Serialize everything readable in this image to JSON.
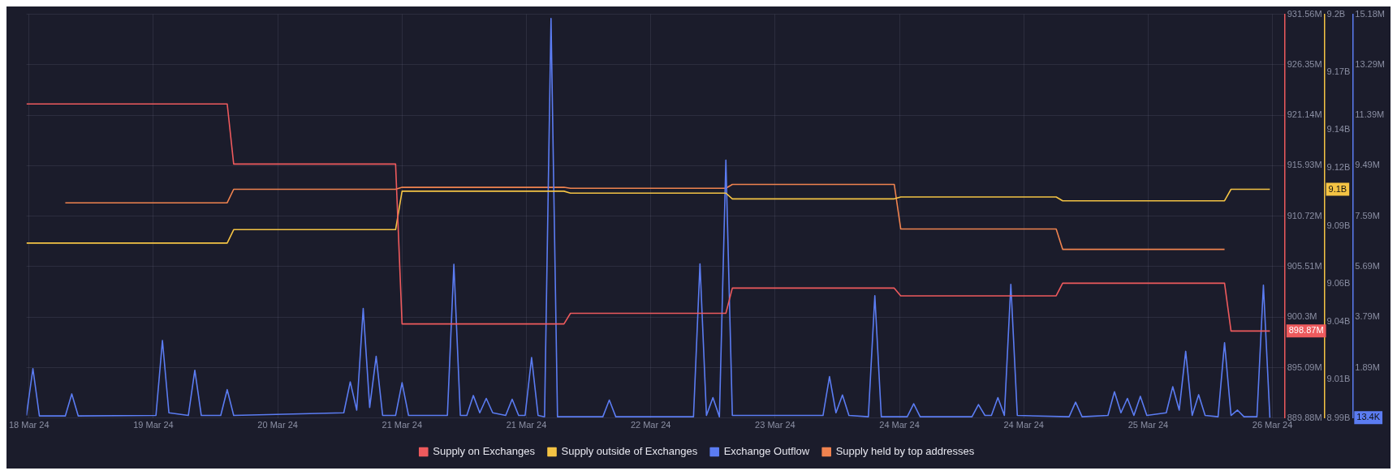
{
  "chart_data": {
    "type": "line",
    "xlim": [
      "--03-18T14:00",
      "--03-26T16:18"
    ],
    "xticks": [
      {
        "value": "--03-18T14:24",
        "label": "18 Mar 24"
      },
      {
        "value": "--03-19T09:36",
        "label": "19 Mar 24"
      },
      {
        "value": "--03-20T04:48",
        "label": "20 Mar 24"
      },
      {
        "value": "--03-21T00:00",
        "label": "21 Mar 24"
      },
      {
        "value": "--03-21T19:12",
        "label": "21 Mar 24"
      },
      {
        "value": "--03-22T14:24",
        "label": "22 Mar 24"
      },
      {
        "value": "--03-23T09:36",
        "label": "23 Mar 24"
      },
      {
        "value": "--03-24T04:48",
        "label": "24 Mar 24"
      },
      {
        "value": "--03-25T00:00",
        "label": "24 Mar 24"
      },
      {
        "value": "--03-25T19:12",
        "label": "25 Mar 24"
      },
      {
        "value": "--03-26T14:24",
        "label": "26 Mar 24"
      }
    ],
    "ylim": [
      889.88,
      931.56
    ],
    "yticks": [
      {
        "value": 889.88,
        "label": "889.88M"
      },
      {
        "value": 895.09,
        "label": "895.09M"
      },
      {
        "value": 900.3,
        "label": "900.3M"
      },
      {
        "value": 905.51,
        "label": "905.51M"
      },
      {
        "value": 910.72,
        "label": "910.72M"
      },
      {
        "value": 915.93,
        "label": "915.93M"
      },
      {
        "value": 921.14,
        "label": "921.14M"
      },
      {
        "value": 926.35,
        "label": "926.35M"
      },
      {
        "value": 931.56,
        "label": "931.56M"
      }
    ],
    "y2lim": [
      8.99,
      9.2
    ],
    "y2ticks": [
      {
        "value": 8.99,
        "label": "8.99B"
      },
      {
        "value": 9.01,
        "label": "9.01B"
      },
      {
        "value": 9.04,
        "label": "9.04B"
      },
      {
        "value": 9.06,
        "label": "9.06B"
      },
      {
        "value": 9.09,
        "label": "9.09B"
      },
      {
        "value": 9.12,
        "label": "9.12B"
      },
      {
        "value": 9.14,
        "label": "9.14B"
      },
      {
        "value": 9.17,
        "label": "9.17B"
      },
      {
        "value": 9.2,
        "label": "9.2B"
      }
    ],
    "y3lim": [
      0,
      15.18
    ],
    "y3ticks": [
      {
        "value": 0,
        "label": null
      },
      {
        "value": 1.89,
        "label": "1.89M"
      },
      {
        "value": 3.79,
        "label": "3.79M"
      },
      {
        "value": 5.69,
        "label": "5.69M"
      },
      {
        "value": 7.59,
        "label": "7.59M"
      },
      {
        "value": 9.49,
        "label": "9.49M"
      },
      {
        "value": 11.39,
        "label": "11.39M"
      },
      {
        "value": 13.29,
        "label": "13.29M"
      },
      {
        "value": 15.18,
        "label": "15.18M"
      }
    ],
    "grid": true,
    "legend": "bottom",
    "annotations": [
      "898.87M",
      "9.1B",
      "13.4K"
    ],
    "series": [
      {
        "name": "Supply on Exchanges",
        "color": "#ee5a5d",
        "axis": "y",
        "x": [
          "--03-18T14:00",
          "--03-19T21:00",
          "--03-19T22:00",
          "--03-20T23:00",
          "--03-21T00:00",
          "--03-22T01:00",
          "--03-22T02:00",
          "--03-23T02:00",
          "--03-23T03:00",
          "--03-24T04:00",
          "--03-24T05:00",
          "--03-25T05:00",
          "--03-25T06:00",
          "--03-26T07:00",
          "--03-26T08:00",
          "--03-26T14:00"
        ],
        "values": [
          922.3,
          922.3,
          916.1,
          916.1,
          899.6,
          899.6,
          900.7,
          900.7,
          903.3,
          903.3,
          902.5,
          902.5,
          903.8,
          903.8,
          898.87,
          898.87
        ]
      },
      {
        "name": "Supply outside of Exchanges",
        "color": "#f4c344",
        "axis": "y2",
        "x": [
          "--03-18T14:00",
          "--03-19T21:00",
          "--03-19T22:00",
          "--03-20T23:00",
          "--03-21T00:00",
          "--03-22T01:00",
          "--03-22T02:00",
          "--03-23T02:00",
          "--03-23T03:00",
          "--03-24T04:00",
          "--03-24T05:00",
          "--03-25T05:00",
          "--03-25T06:00",
          "--03-26T07:00",
          "--03-26T08:00",
          "--03-26T14:00"
        ],
        "values": [
          9.081,
          9.081,
          9.088,
          9.088,
          9.108,
          9.108,
          9.107,
          9.107,
          9.104,
          9.104,
          9.105,
          9.105,
          9.103,
          9.103,
          9.109,
          9.109
        ]
      },
      {
        "name": "Exchange Outflow",
        "color": "#5b7cf2",
        "axis": "y3",
        "x": [
          "--03-18T14:00",
          "--03-18T15:00",
          "--03-18T16:00",
          "--03-18T20:00",
          "--03-18T21:00",
          "--03-18T22:00",
          "--03-19T10:00",
          "--03-19T11:00",
          "--03-19T12:00",
          "--03-19T15:00",
          "--03-19T16:00",
          "--03-19T17:00",
          "--03-19T20:00",
          "--03-19T21:00",
          "--03-19T22:00",
          "--03-20T15:00",
          "--03-20T16:00",
          "--03-20T17:00",
          "--03-20T18:00",
          "--03-20T19:00",
          "--03-20T20:00",
          "--03-20T21:00",
          "--03-20T23:00",
          "--03-21T00:00",
          "--03-21T01:00",
          "--03-21T07:00",
          "--03-21T08:00",
          "--03-21T09:00",
          "--03-21T10:00",
          "--03-21T11:00",
          "--03-21T12:00",
          "--03-21T13:00",
          "--03-21T14:00",
          "--03-21T16:00",
          "--03-21T17:00",
          "--03-21T18:00",
          "--03-21T19:00",
          "--03-21T20:00",
          "--03-21T21:00",
          "--03-21T22:00",
          "--03-21T23:00",
          "--03-22T00:00",
          "--03-22T07:00",
          "--03-22T08:00",
          "--03-22T09:00",
          "--03-22T21:00",
          "--03-22T22:00",
          "--03-22T23:00",
          "--03-23T00:00",
          "--03-23T01:00",
          "--03-23T02:00",
          "--03-23T03:00",
          "--03-23T17:00",
          "--03-23T18:00",
          "--03-23T19:00",
          "--03-23T20:00",
          "--03-23T21:00",
          "--03-24T00:00",
          "--03-24T01:00",
          "--03-24T02:00",
          "--03-24T06:00",
          "--03-24T07:00",
          "--03-24T08:00",
          "--03-24T16:00",
          "--03-24T17:00",
          "--03-24T18:00",
          "--03-24T19:00",
          "--03-24T20:00",
          "--03-24T21:00",
          "--03-24T22:00",
          "--03-24T23:00",
          "--03-25T07:00",
          "--03-25T08:00",
          "--03-25T09:00",
          "--03-25T13:00",
          "--03-25T14:00",
          "--03-25T15:00",
          "--03-25T16:00",
          "--03-25T17:00",
          "--03-25T18:00",
          "--03-25T19:00",
          "--03-25T22:00",
          "--03-25T23:00",
          "--03-26T00:00",
          "--03-26T01:00",
          "--03-26T02:00",
          "--03-26T03:00",
          "--03-26T04:00",
          "--03-26T06:00",
          "--03-26T07:00",
          "--03-26T08:00",
          "--03-26T09:00",
          "--03-26T10:00",
          "--03-26T12:00",
          "--03-26T13:00",
          "--03-26T14:00"
        ],
        "values": [
          0.1,
          1.86,
          0.08,
          0.08,
          0.91,
          0.08,
          0.1,
          2.92,
          0.2,
          0.1,
          1.8,
          0.1,
          0.1,
          1.07,
          0.1,
          0.2,
          1.36,
          0.3,
          4.12,
          0.4,
          2.32,
          0.1,
          0.1,
          1.33,
          0.1,
          0.1,
          5.78,
          0.1,
          0.1,
          0.85,
          0.2,
          0.74,
          0.2,
          0.1,
          0.71,
          0.1,
          0.1,
          2.28,
          0.1,
          0.05,
          15.02,
          0.05,
          0.05,
          0.68,
          0.05,
          0.05,
          5.8,
          0.1,
          0.77,
          0.05,
          9.7,
          0.1,
          0.1,
          1.56,
          0.2,
          0.87,
          0.1,
          0.05,
          4.6,
          0.05,
          0.05,
          0.54,
          0.05,
          0.05,
          0.51,
          0.1,
          0.1,
          0.77,
          0.1,
          5.03,
          0.1,
          0.05,
          0.6,
          0.05,
          0.1,
          0.99,
          0.2,
          0.74,
          0.1,
          0.82,
          0.1,
          0.2,
          1.18,
          0.3,
          2.51,
          0.1,
          0.88,
          0.1,
          0.05,
          2.83,
          0.1,
          0.3,
          0.05,
          0.05,
          5.0,
          0.0134
        ]
      },
      {
        "name": "Supply held by top addresses",
        "color": "#f0834f",
        "axis": "y",
        "x": [
          "--03-18T20:00",
          "--03-19T21:00",
          "--03-19T22:00",
          "--03-20T23:00",
          "--03-21T00:00",
          "--03-22T01:00",
          "--03-22T02:00",
          "--03-23T02:00",
          "--03-23T03:00",
          "--03-24T04:00",
          "--03-24T05:00",
          "--03-25T05:00",
          "--03-25T06:00",
          "--03-26T07:00"
        ],
        "values": [
          912.1,
          912.1,
          913.5,
          913.5,
          913.7,
          913.7,
          913.6,
          913.6,
          914.0,
          914.0,
          909.4,
          909.4,
          907.3,
          907.3
        ]
      }
    ]
  }
}
